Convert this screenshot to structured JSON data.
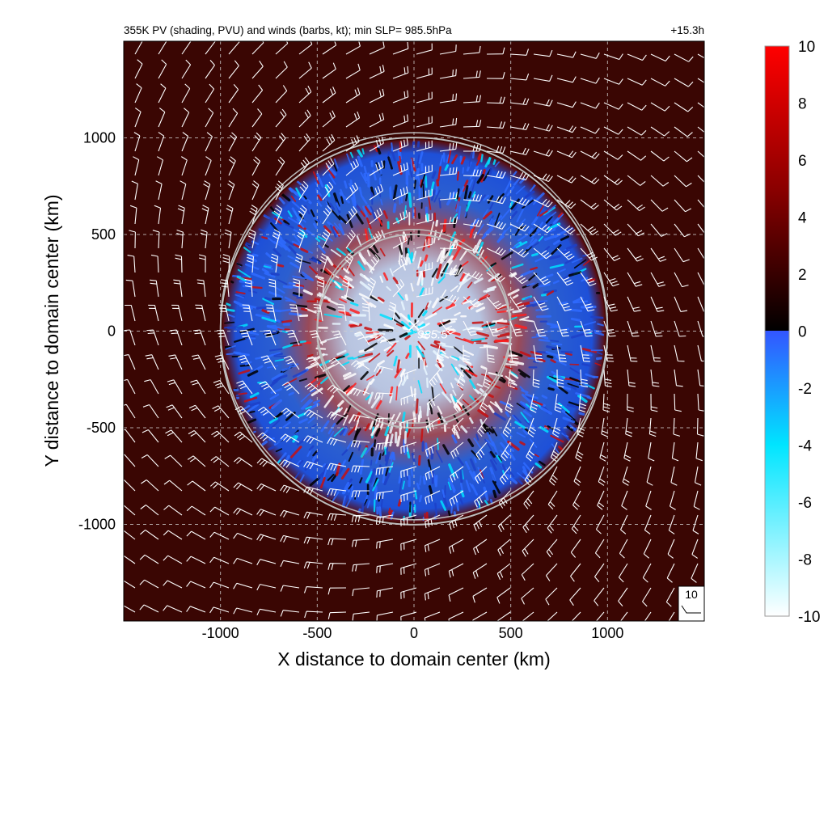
{
  "chart_data": {
    "type": "heatmap",
    "title": "355K PV (shading, PVU) and winds (barbs, kt); min SLP=  985.5hPa",
    "time_label": "+15.3h",
    "xlabel": "X distance to domain center (km)",
    "ylabel": "Y distance to domain center (km)",
    "xlim": [
      -1500,
      1500
    ],
    "ylim": [
      -1500,
      1500
    ],
    "x_ticks": [
      {
        "value": -1000,
        "label": "-1000"
      },
      {
        "value": -500,
        "label": "-500"
      },
      {
        "value": 0,
        "label": "0"
      },
      {
        "value": 500,
        "label": "500"
      },
      {
        "value": 1000,
        "label": "1000"
      }
    ],
    "y_ticks": [
      {
        "value": 1000,
        "label": "1000"
      },
      {
        "value": 500,
        "label": "500"
      },
      {
        "value": 0,
        "label": "0"
      },
      {
        "value": -500,
        "label": "-500"
      },
      {
        "value": -1000,
        "label": "-1000"
      }
    ],
    "grid": true,
    "colorbar": {
      "range": [
        -10,
        10
      ],
      "tick_labels": [
        {
          "value": 10,
          "label": "10"
        },
        {
          "value": 8,
          "label": "8"
        },
        {
          "value": 6,
          "label": "6"
        },
        {
          "value": 4,
          "label": "4"
        },
        {
          "value": 2,
          "label": "2"
        },
        {
          "value": 0,
          "label": "0"
        },
        {
          "value": -2,
          "label": "-2"
        },
        {
          "value": -4,
          "label": "-4"
        },
        {
          "value": -6,
          "label": "-6"
        },
        {
          "value": -8,
          "label": "-8"
        },
        {
          "value": -10,
          "label": "-10"
        }
      ]
    },
    "min_slp": {
      "x": 0,
      "y": 30,
      "label": "985.5"
    },
    "range_rings_km": [
      500,
      1000
    ],
    "storm_region_radius_km": 990,
    "barb_reference_label": "10"
  },
  "colors": {
    "background_field": "#3a0603",
    "positive_high": "#ff0000",
    "positive_mid": "#8b0000",
    "zero": "#000000",
    "negative_low": "#3355ff",
    "negative_mid": "#00ffff",
    "negative_high": "#ffffff",
    "grid": "#cfcfcf",
    "rings": "#bdbdbd",
    "barbs": "#ffffff"
  }
}
